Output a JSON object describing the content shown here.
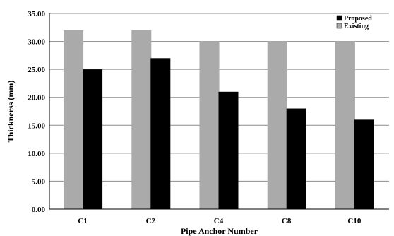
{
  "chart_data": {
    "type": "bar",
    "categories": [
      "C1",
      "C2",
      "C4",
      "C8",
      "C10"
    ],
    "series": [
      {
        "name": "Existing",
        "values": [
          32,
          32,
          30,
          30,
          30
        ],
        "color": "#aaaaaa"
      },
      {
        "name": "Proposed",
        "values": [
          25,
          27,
          21,
          18,
          16
        ],
        "color": "#000000"
      }
    ],
    "yticks": [
      "0.00",
      "5.00",
      "10.00",
      "15.00",
      "20.00",
      "25.00",
      "30.00",
      "35.00"
    ],
    "ylim": [
      0,
      35
    ],
    "xlabel": "Pipe Anchor Number",
    "ylabel": "Thicknerss (mm)",
    "legend": {
      "position": "top-right",
      "order": [
        "Proposed",
        "Existing"
      ]
    },
    "grid": "horizontal"
  }
}
